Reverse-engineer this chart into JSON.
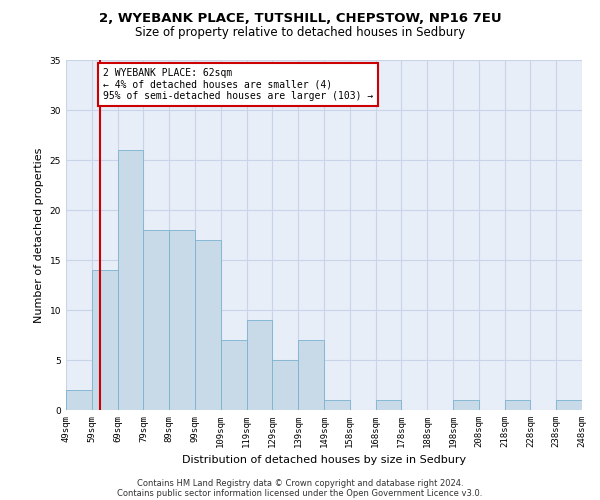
{
  "title1": "2, WYEBANK PLACE, TUTSHILL, CHEPSTOW, NP16 7EU",
  "title2": "Size of property relative to detached houses in Sedbury",
  "xlabel": "Distribution of detached houses by size in Sedbury",
  "ylabel": "Number of detached properties",
  "bin_labels": [
    "49sqm",
    "59sqm",
    "69sqm",
    "79sqm",
    "89sqm",
    "99sqm",
    "109sqm",
    "119sqm",
    "129sqm",
    "139sqm",
    "149sqm",
    "158sqm",
    "168sqm",
    "178sqm",
    "188sqm",
    "198sqm",
    "208sqm",
    "218sqm",
    "228sqm",
    "238sqm",
    "248sqm"
  ],
  "bar_heights": [
    2,
    14,
    26,
    18,
    18,
    17,
    7,
    9,
    5,
    7,
    1,
    0,
    1,
    0,
    0,
    1,
    0,
    1,
    0,
    1
  ],
  "bar_color": "#c8d9e8",
  "bar_edge_color": "#7ab3d0",
  "vline_x": 62,
  "vline_color": "#cc0000",
  "annotation_text": "2 WYEBANK PLACE: 62sqm\n← 4% of detached houses are smaller (4)\n95% of semi-detached houses are larger (103) →",
  "annotation_bbox_color": "#cc0000",
  "ylim": [
    0,
    35
  ],
  "yticks": [
    0,
    5,
    10,
    15,
    20,
    25,
    30,
    35
  ],
  "grid_color": "#c8d4e8",
  "background_color": "#e8eef8",
  "footer1": "Contains HM Land Registry data © Crown copyright and database right 2024.",
  "footer2": "Contains public sector information licensed under the Open Government Licence v3.0.",
  "title1_fontsize": 9.5,
  "title2_fontsize": 8.5,
  "xlabel_fontsize": 8,
  "ylabel_fontsize": 8,
  "tick_fontsize": 6.5,
  "annotation_fontsize": 7,
  "footer_fontsize": 6
}
